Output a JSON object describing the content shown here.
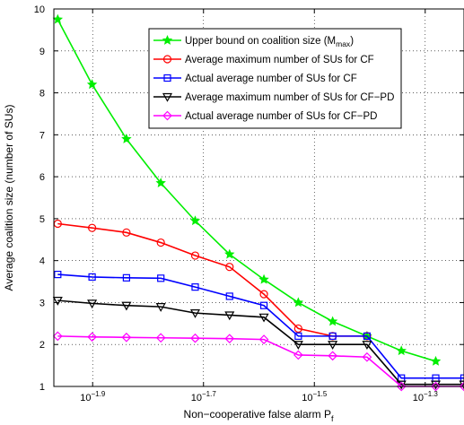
{
  "chart_data": {
    "type": "line",
    "title": "",
    "xlabel": "Non−cooperative false alarm P",
    "xlabel_sub": "f",
    "ylabel": "Average coalition size (number of SUs)",
    "x_scale": "log10",
    "x_exponent_range": [
      -1.97,
      -1.23
    ],
    "ylim": [
      1,
      10
    ],
    "grid": "on (dotted)",
    "legend_position": "top-right",
    "y_ticks": [
      "1",
      "2",
      "3",
      "4",
      "5",
      "6",
      "7",
      "8",
      "9",
      "10"
    ],
    "x_ticks": [
      {
        "base": "10",
        "exp": "−1.9",
        "value": -1.9
      },
      {
        "base": "10",
        "exp": "−1.7",
        "value": -1.7
      },
      {
        "base": "10",
        "exp": "−1.5",
        "value": -1.5
      },
      {
        "base": "10",
        "exp": "−1.3",
        "value": -1.3
      }
    ],
    "x": [
      -1.963,
      -1.901,
      -1.839,
      -1.777,
      -1.715,
      -1.653,
      -1.591,
      -1.529,
      -1.467,
      -1.405,
      -1.343,
      -1.281,
      -1.23
    ],
    "series": [
      {
        "name": "Upper bound on coalition size (M",
        "name_sub": "max",
        "name_suffix": ")",
        "color": "#00ee00",
        "marker": "star",
        "values": [
          9.75,
          8.2,
          6.9,
          5.85,
          4.95,
          4.15,
          3.55,
          3.0,
          2.55,
          2.2,
          1.85,
          1.6,
          null
        ]
      },
      {
        "name": "Average maximum number of SUs for CF",
        "color": "#ff0000",
        "marker": "circle",
        "values": [
          4.88,
          4.78,
          4.67,
          4.43,
          4.12,
          3.85,
          3.2,
          2.38,
          2.2,
          2.2,
          null,
          null,
          null
        ]
      },
      {
        "name": "Actual average number of SUs for CF",
        "color": "#0000ff",
        "marker": "square",
        "values": [
          3.67,
          3.61,
          3.59,
          3.58,
          3.37,
          3.15,
          2.93,
          2.2,
          2.2,
          2.2,
          1.2,
          1.2,
          1.2
        ]
      },
      {
        "name": "Average maximum number of SUs for CF−PD",
        "color": "#000000",
        "marker": "triangle-down",
        "values": [
          3.05,
          2.98,
          2.93,
          2.9,
          2.75,
          2.7,
          2.65,
          2.0,
          2.0,
          2.0,
          1.05,
          1.05,
          1.05
        ]
      },
      {
        "name": "Actual average number of SUs for CF−PD",
        "color": "#ff00ff",
        "marker": "diamond",
        "values": [
          2.2,
          2.18,
          2.17,
          2.16,
          2.15,
          2.14,
          2.12,
          1.75,
          1.73,
          1.7,
          1.0,
          1.0,
          1.0
        ]
      }
    ]
  }
}
